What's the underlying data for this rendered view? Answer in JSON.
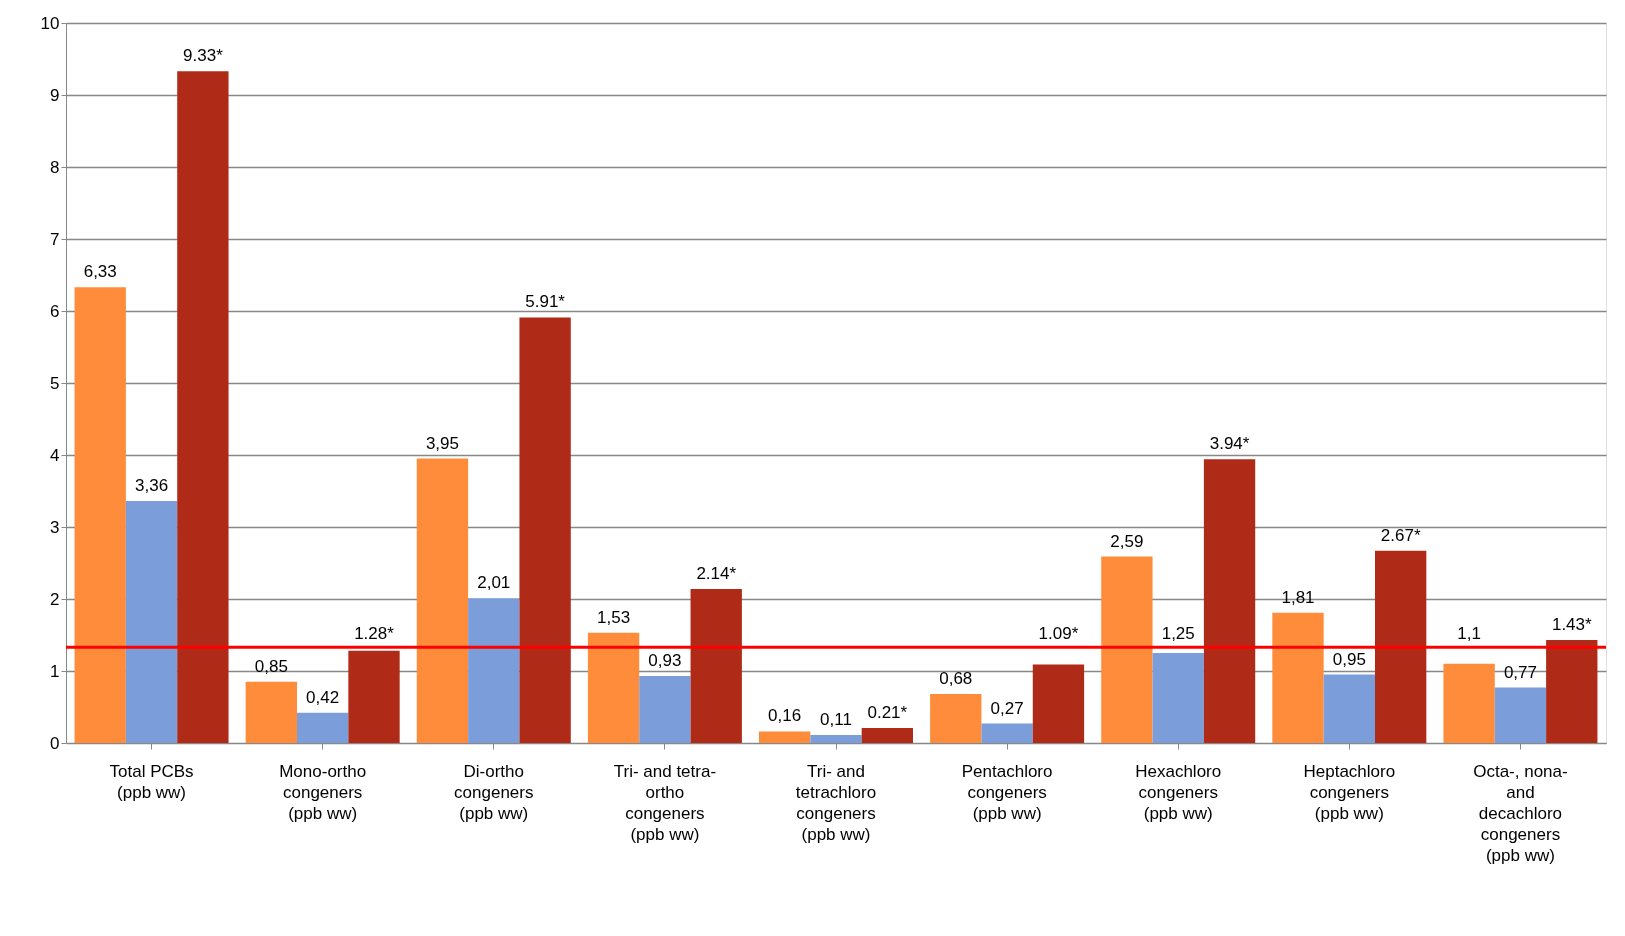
{
  "chart_data": {
    "type": "bar",
    "categories": [
      "Total PCBs\n(ppb ww)",
      "Mono-ortho\ncongeners\n(ppb ww)",
      "Di-ortho\ncongeners\n(ppb ww)",
      "Tri- and tetra-\northo\ncongeners\n(ppb ww)",
      "Tri- and\ntetrachloro\ncongeners\n(ppb ww)",
      "Pentachloro\ncongeners\n(ppb ww)",
      "Hexachloro\ncongeners\n(ppb ww)",
      "Heptachloro\ncongeners\n(ppb ww)",
      "Octa-, nona-\nand\ndecachloro\ncongeners\n(ppb ww)"
    ],
    "series": [
      {
        "color": "#ff8c3a",
        "values": [
          6.33,
          0.85,
          3.95,
          1.53,
          0.16,
          0.68,
          2.59,
          1.81,
          1.1
        ],
        "value_labels": [
          "6,33",
          "0,85",
          "3,95",
          "1,53",
          "0,16",
          "0,68",
          "2,59",
          "1,81",
          "1,1"
        ]
      },
      {
        "color": "#7b9edb",
        "values": [
          3.36,
          0.42,
          2.01,
          0.93,
          0.11,
          0.27,
          1.25,
          0.95,
          0.77
        ],
        "value_labels": [
          "3,36",
          "0,42",
          "2,01",
          "0,93",
          "0,11",
          "0,27",
          "1,25",
          "0,95",
          "0,77"
        ]
      },
      {
        "color": "#b02a18",
        "values": [
          9.33,
          1.28,
          5.91,
          2.14,
          0.21,
          1.09,
          3.94,
          2.67,
          1.43
        ],
        "value_labels": [
          "9.33*",
          "1.28*",
          "5.91*",
          "2.14*",
          "0.21*",
          "1.09*",
          "3.94*",
          "2.67*",
          "1.43*"
        ]
      }
    ],
    "ylim": [
      0,
      10
    ],
    "yticks": [
      0,
      1,
      2,
      3,
      4,
      5,
      6,
      7,
      8,
      9,
      10
    ],
    "grid": "y",
    "legend": false,
    "ref_lines": [
      {
        "axis": "y",
        "value": 1.33,
        "color": "#ff0000"
      }
    ]
  }
}
